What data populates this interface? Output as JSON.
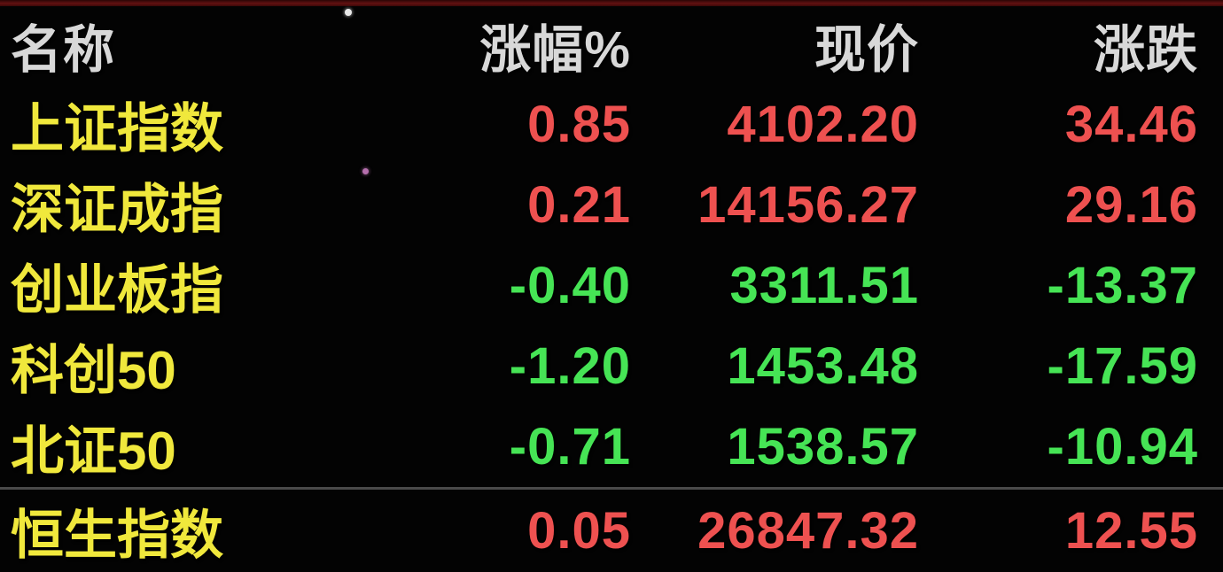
{
  "table": {
    "columns": {
      "name": "名称",
      "pct": "涨幅%",
      "price": "现价",
      "chg": "涨跌"
    },
    "rows": [
      {
        "name": "上证指数",
        "pct": "0.85",
        "price": "4102.20",
        "chg": "34.46",
        "trend": "up"
      },
      {
        "name": "深证成指",
        "pct": "0.21",
        "price": "14156.27",
        "chg": "29.16",
        "trend": "up"
      },
      {
        "name": "创业板指",
        "pct": "-0.40",
        "price": "3311.51",
        "chg": "-13.37",
        "trend": "down"
      },
      {
        "name": "科创50",
        "pct": "-1.20",
        "price": "1453.48",
        "chg": "-17.59",
        "trend": "down"
      },
      {
        "name": "北证50",
        "pct": "-0.71",
        "price": "1538.57",
        "chg": "-10.94",
        "trend": "down"
      },
      {
        "name": "恒生指数",
        "pct": "0.05",
        "price": "26847.32",
        "chg": "12.55",
        "trend": "up"
      }
    ]
  },
  "colors": {
    "up": "#ee5150",
    "down": "#46e455",
    "name": "#f0e83c",
    "header": "#d8d8d8",
    "background": "#030303",
    "divider": "#4a4a4a",
    "top_strip": "#621111"
  }
}
